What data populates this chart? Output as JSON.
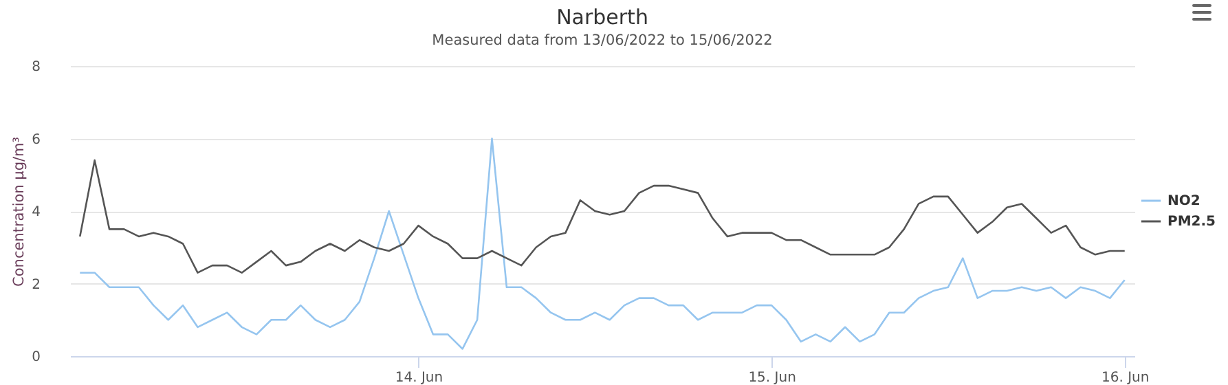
{
  "chart_data": {
    "type": "line",
    "title": "Narberth",
    "subtitle": "Measured data from 13/06/2022 to 15/06/2022",
    "ylabel": "Concentration μg/m³",
    "x": [
      "2022-06-13T01:00",
      "2022-06-13T02:00",
      "2022-06-13T03:00",
      "2022-06-13T04:00",
      "2022-06-13T05:00",
      "2022-06-13T06:00",
      "2022-06-13T07:00",
      "2022-06-13T08:00",
      "2022-06-13T09:00",
      "2022-06-13T10:00",
      "2022-06-13T11:00",
      "2022-06-13T12:00",
      "2022-06-13T13:00",
      "2022-06-13T14:00",
      "2022-06-13T15:00",
      "2022-06-13T16:00",
      "2022-06-13T17:00",
      "2022-06-13T18:00",
      "2022-06-13T19:00",
      "2022-06-13T20:00",
      "2022-06-13T21:00",
      "2022-06-13T22:00",
      "2022-06-13T23:00",
      "2022-06-14T00:00",
      "2022-06-14T01:00",
      "2022-06-14T02:00",
      "2022-06-14T03:00",
      "2022-06-14T04:00",
      "2022-06-14T05:00",
      "2022-06-14T06:00",
      "2022-06-14T07:00",
      "2022-06-14T08:00",
      "2022-06-14T09:00",
      "2022-06-14T10:00",
      "2022-06-14T11:00",
      "2022-06-14T12:00",
      "2022-06-14T13:00",
      "2022-06-14T14:00",
      "2022-06-14T15:00",
      "2022-06-14T16:00",
      "2022-06-14T17:00",
      "2022-06-14T18:00",
      "2022-06-14T19:00",
      "2022-06-14T20:00",
      "2022-06-14T21:00",
      "2022-06-14T22:00",
      "2022-06-14T23:00",
      "2022-06-15T00:00",
      "2022-06-15T01:00",
      "2022-06-15T02:00",
      "2022-06-15T03:00",
      "2022-06-15T04:00",
      "2022-06-15T05:00",
      "2022-06-15T06:00",
      "2022-06-15T07:00",
      "2022-06-15T08:00",
      "2022-06-15T09:00",
      "2022-06-15T10:00",
      "2022-06-15T11:00",
      "2022-06-15T12:00",
      "2022-06-15T13:00",
      "2022-06-15T14:00",
      "2022-06-15T15:00",
      "2022-06-15T16:00",
      "2022-06-15T17:00",
      "2022-06-15T18:00",
      "2022-06-15T19:00",
      "2022-06-15T20:00",
      "2022-06-15T21:00",
      "2022-06-15T22:00",
      "2022-06-15T23:00",
      "2022-06-16T00:00"
    ],
    "series": [
      {
        "name": "NO2",
        "color": "#95c5ef",
        "values": [
          2.3,
          2.3,
          1.9,
          1.9,
          1.9,
          1.4,
          1.0,
          1.4,
          0.8,
          1.0,
          1.2,
          0.8,
          0.6,
          1.0,
          1.0,
          1.4,
          1.0,
          0.8,
          1.0,
          1.5,
          2.7,
          4.0,
          2.8,
          1.6,
          0.6,
          0.6,
          0.2,
          1.0,
          6.0,
          1.9,
          1.9,
          1.6,
          1.2,
          1.0,
          1.0,
          1.2,
          1.0,
          1.4,
          1.6,
          1.6,
          1.4,
          1.4,
          1.0,
          1.2,
          1.2,
          1.2,
          1.4,
          1.4,
          1.0,
          0.4,
          0.6,
          0.4,
          0.8,
          0.4,
          0.6,
          1.2,
          1.2,
          1.6,
          1.8,
          1.9,
          2.7,
          1.6,
          1.8,
          1.8,
          1.9,
          1.8,
          1.9,
          1.6,
          1.9,
          1.8,
          1.6,
          2.1
        ]
      },
      {
        "name": "PM2.5",
        "color": "#555555",
        "values": [
          3.3,
          5.4,
          3.5,
          3.5,
          3.3,
          3.4,
          3.3,
          3.1,
          2.3,
          2.5,
          2.5,
          2.3,
          2.6,
          2.9,
          2.5,
          2.6,
          2.9,
          3.1,
          2.9,
          3.2,
          3.0,
          2.9,
          3.1,
          3.6,
          3.3,
          3.1,
          2.7,
          2.7,
          2.9,
          2.7,
          2.5,
          3.0,
          3.3,
          3.4,
          4.3,
          4.0,
          3.9,
          4.0,
          4.5,
          4.7,
          4.7,
          4.6,
          4.5,
          3.8,
          3.3,
          3.4,
          3.4,
          3.4,
          3.2,
          3.2,
          3.0,
          2.8,
          2.8,
          2.8,
          2.8,
          3.0,
          3.5,
          4.2,
          4.4,
          4.4,
          3.9,
          3.4,
          3.7,
          4.1,
          4.2,
          3.8,
          3.4,
          3.6,
          3.0,
          2.8,
          2.9,
          2.9
        ]
      }
    ],
    "xlim": [
      "2022-06-13T00:20",
      "2022-06-16T00:40"
    ],
    "xticks": [
      {
        "value": "2022-06-14",
        "label": "14. Jun"
      },
      {
        "value": "2022-06-15",
        "label": "15. Jun"
      },
      {
        "value": "2022-06-16",
        "label": "16. Jun"
      }
    ],
    "ylim": [
      0,
      8
    ],
    "yticks": [
      0,
      2,
      4,
      6,
      8
    ],
    "grid": "y",
    "legend": "right",
    "marker": "none",
    "line_style": "solid"
  }
}
